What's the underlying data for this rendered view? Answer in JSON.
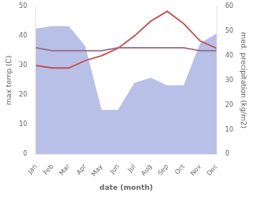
{
  "chart_data": {
    "type": "line",
    "xlabel": "date (month)",
    "ylabel": "max temp (C)",
    "y2label": "med. precipitation (kg/m2)",
    "categories": [
      "Jan",
      "Feb",
      "Mar",
      "Apr",
      "May",
      "Jun",
      "Jul",
      "Aug",
      "Sep",
      "Oct",
      "Nov",
      "Dec"
    ],
    "series": [
      {
        "type": "area",
        "color": "#b8c0e8",
        "axis": "y2",
        "values": [
          51,
          52,
          52,
          44,
          18,
          18,
          29,
          31,
          28,
          28,
          45,
          49
        ]
      },
      {
        "type": "line",
        "color": "#c0504d",
        "axis": "y2",
        "values": [
          36,
          35,
          35,
          38,
          40,
          43,
          48,
          54,
          58,
          53,
          46,
          43
        ]
      },
      {
        "type": "line",
        "color": "#9b6b8b",
        "values": [
          36,
          35,
          35,
          35,
          35,
          36,
          36,
          36,
          36,
          36,
          35,
          35
        ]
      }
    ],
    "ylim": [
      0,
      50
    ],
    "yticks": [
      0,
      10,
      20,
      30,
      40,
      50
    ],
    "y2lim": [
      0,
      60
    ],
    "y2ticks": [
      0,
      10,
      20,
      30,
      40,
      50,
      60
    ],
    "grid": false
  }
}
